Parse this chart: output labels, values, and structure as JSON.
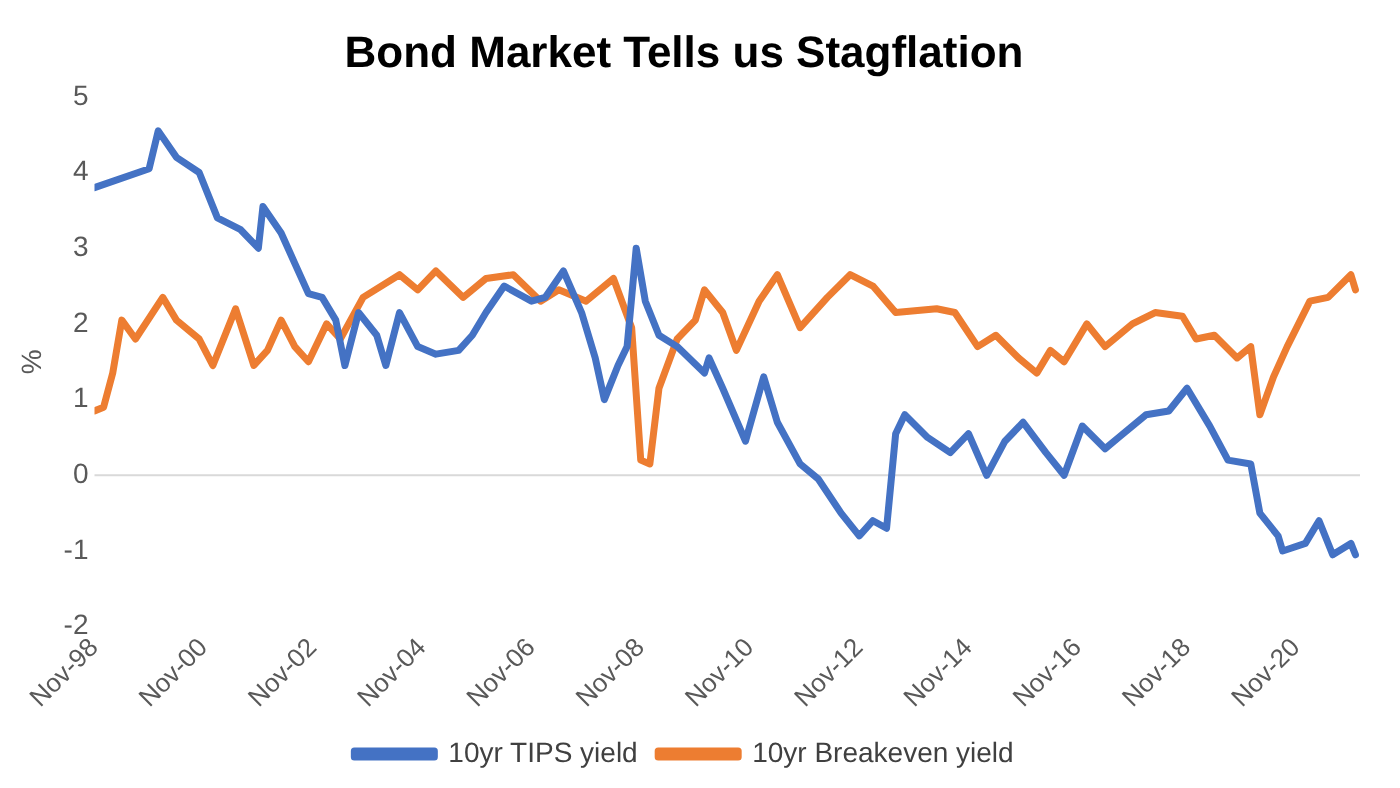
{
  "chart_data": {
    "type": "line",
    "title": "Bond Market Tells us Stagflation",
    "ylabel": "%",
    "xlim": [
      "1998-11",
      "2022-01"
    ],
    "xticks": [
      {
        "value": "1998-11",
        "label": "Nov-98"
      },
      {
        "value": "2000-11",
        "label": "Nov-00"
      },
      {
        "value": "2002-11",
        "label": "Nov-02"
      },
      {
        "value": "2004-11",
        "label": "Nov-04"
      },
      {
        "value": "2006-11",
        "label": "Nov-06"
      },
      {
        "value": "2008-11",
        "label": "Nov-08"
      },
      {
        "value": "2010-11",
        "label": "Nov-10"
      },
      {
        "value": "2012-11",
        "label": "Nov-12"
      },
      {
        "value": "2014-11",
        "label": "Nov-14"
      },
      {
        "value": "2016-11",
        "label": "Nov-16"
      },
      {
        "value": "2018-11",
        "label": "Nov-18"
      },
      {
        "value": "2020-11",
        "label": "Nov-20"
      }
    ],
    "ylim": [
      -2,
      5
    ],
    "yticks": [
      -2,
      -1,
      0,
      1,
      2,
      3,
      4,
      5
    ],
    "grid": false,
    "ref_lines": [
      {
        "axis": "y",
        "value": 0,
        "color": "#d9d9d9"
      }
    ],
    "legend": "bottom",
    "marker": "none",
    "line_style": "solid",
    "series": [
      {
        "name": "10yr TIPS yield",
        "color": "#4472c4",
        "x": [
          "1998-11",
          "1999-11",
          "2000-01",
          "2000-05",
          "2000-10",
          "2001-02",
          "2001-07",
          "2001-11",
          "2001-12",
          "2002-04",
          "2002-07",
          "2002-10",
          "2003-01",
          "2003-04",
          "2003-06",
          "2003-09",
          "2004-01",
          "2004-03",
          "2004-06",
          "2004-10",
          "2005-02",
          "2005-07",
          "2005-10",
          "2006-01",
          "2006-05",
          "2006-11",
          "2007-02",
          "2007-06",
          "2007-10",
          "2008-01",
          "2008-03",
          "2008-06",
          "2008-08",
          "2008-10",
          "2008-12",
          "2009-03",
          "2009-07",
          "2010-01",
          "2010-02",
          "2010-05",
          "2010-10",
          "2011-02",
          "2011-05",
          "2011-10",
          "2012-02",
          "2012-07",
          "2012-11",
          "2013-02",
          "2013-05",
          "2013-07",
          "2013-09",
          "2014-02",
          "2014-07",
          "2014-11",
          "2015-03",
          "2015-07",
          "2015-11",
          "2016-04",
          "2016-08",
          "2016-12",
          "2017-05",
          "2017-08",
          "2018-02",
          "2018-07",
          "2018-11",
          "2019-04",
          "2019-08",
          "2020-01",
          "2020-03",
          "2020-07",
          "2020-08",
          "2021-01",
          "2021-04",
          "2021-07",
          "2021-11",
          "2021-12"
        ],
        "values": [
          3.8,
          4.05,
          4.55,
          4.2,
          4.0,
          3.4,
          3.25,
          3.0,
          3.55,
          3.2,
          2.8,
          2.4,
          2.35,
          2.05,
          1.45,
          2.15,
          1.85,
          1.45,
          2.15,
          1.7,
          1.6,
          1.65,
          1.85,
          2.15,
          2.5,
          2.3,
          2.35,
          2.7,
          2.15,
          1.55,
          1.0,
          1.45,
          1.7,
          3.0,
          2.3,
          1.85,
          1.7,
          1.35,
          1.55,
          1.15,
          0.45,
          1.3,
          0.7,
          0.15,
          -0.05,
          -0.5,
          -0.8,
          -0.6,
          -0.7,
          0.55,
          0.8,
          0.5,
          0.3,
          0.55,
          0.0,
          0.45,
          0.7,
          0.3,
          0.0,
          0.65,
          0.35,
          0.5,
          0.8,
          0.85,
          1.15,
          0.65,
          0.2,
          0.15,
          -0.5,
          -0.8,
          -1.0,
          -0.9,
          -0.6,
          -1.05,
          -0.9,
          -1.05
        ]
      },
      {
        "name": "10yr Breakeven yield",
        "color": "#ed7d31",
        "x": [
          "1998-11",
          "1999-01",
          "1999-03",
          "1999-05",
          "1999-08",
          "2000-02",
          "2000-05",
          "2000-10",
          "2001-01",
          "2001-06",
          "2001-10",
          "2002-01",
          "2002-04",
          "2002-07",
          "2002-10",
          "2003-02",
          "2003-05",
          "2003-10",
          "2004-06",
          "2004-10",
          "2005-02",
          "2005-08",
          "2006-01",
          "2006-07",
          "2007-01",
          "2007-05",
          "2007-11",
          "2008-05",
          "2008-09",
          "2008-11",
          "2009-01",
          "2009-03",
          "2009-07",
          "2009-11",
          "2010-01",
          "2010-05",
          "2010-08",
          "2011-01",
          "2011-05",
          "2011-10",
          "2012-04",
          "2012-09",
          "2013-02",
          "2013-07",
          "2014-04",
          "2014-08",
          "2015-01",
          "2015-05",
          "2015-10",
          "2016-02",
          "2016-05",
          "2016-08",
          "2017-01",
          "2017-05",
          "2017-11",
          "2018-04",
          "2018-10",
          "2019-01",
          "2019-05",
          "2019-10",
          "2020-01",
          "2020-03",
          "2020-06",
          "2020-09",
          "2021-02",
          "2021-06",
          "2021-11",
          "2021-12"
        ],
        "values": [
          0.85,
          0.9,
          1.35,
          2.05,
          1.8,
          2.35,
          2.05,
          1.8,
          1.45,
          2.2,
          1.45,
          1.65,
          2.05,
          1.7,
          1.5,
          2.0,
          1.8,
          2.35,
          2.65,
          2.45,
          2.7,
          2.35,
          2.6,
          2.65,
          2.3,
          2.45,
          2.3,
          2.6,
          1.95,
          0.2,
          0.15,
          1.15,
          1.8,
          2.05,
          2.45,
          2.15,
          1.65,
          2.3,
          2.65,
          1.95,
          2.35,
          2.65,
          2.5,
          2.15,
          2.2,
          2.15,
          1.7,
          1.85,
          1.55,
          1.35,
          1.65,
          1.5,
          2.0,
          1.7,
          2.0,
          2.15,
          2.1,
          1.8,
          1.85,
          1.55,
          1.7,
          0.8,
          1.3,
          1.7,
          2.3,
          2.35,
          2.65,
          2.45
        ]
      }
    ]
  }
}
